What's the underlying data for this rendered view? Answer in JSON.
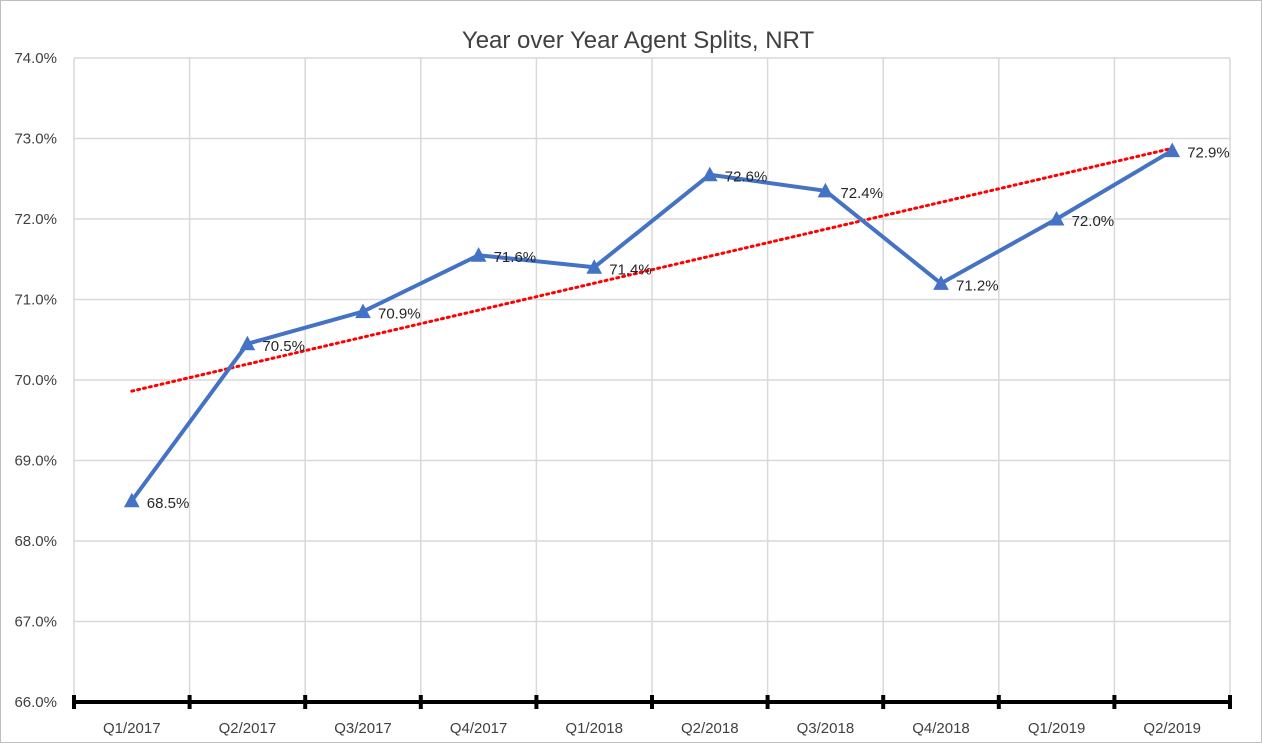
{
  "chart_data": {
    "type": "line",
    "title": "Year over Year Agent Splits, NRT",
    "categories": [
      "Q1/2017",
      "Q2/2017",
      "Q3/2017",
      "Q4/2017",
      "Q1/2018",
      "Q2/2018",
      "Q3/2018",
      "Q4/2018",
      "Q1/2019",
      "Q2/2019"
    ],
    "series": [
      {
        "values": [
          68.5,
          70.45,
          70.85,
          71.55,
          71.4,
          72.55,
          72.35,
          71.2,
          72.0,
          72.85
        ],
        "labels": [
          "68.5%",
          "70.5%",
          "70.9%",
          "71.6%",
          "71.4%",
          "72.6%",
          "72.4%",
          "71.2%",
          "72.0%",
          "72.9%"
        ],
        "color": "#4472c4",
        "marker": "triangle"
      }
    ],
    "trendline": {
      "type": "linear",
      "color": "#ff0000",
      "style": "dotted"
    },
    "ylim": [
      66.0,
      74.0
    ],
    "yticks": [
      "66.0%",
      "67.0%",
      "68.0%",
      "69.0%",
      "70.0%",
      "71.0%",
      "72.0%",
      "73.0%",
      "74.0%"
    ],
    "grid": true,
    "legend": "none",
    "xlabel": "",
    "ylabel": ""
  }
}
